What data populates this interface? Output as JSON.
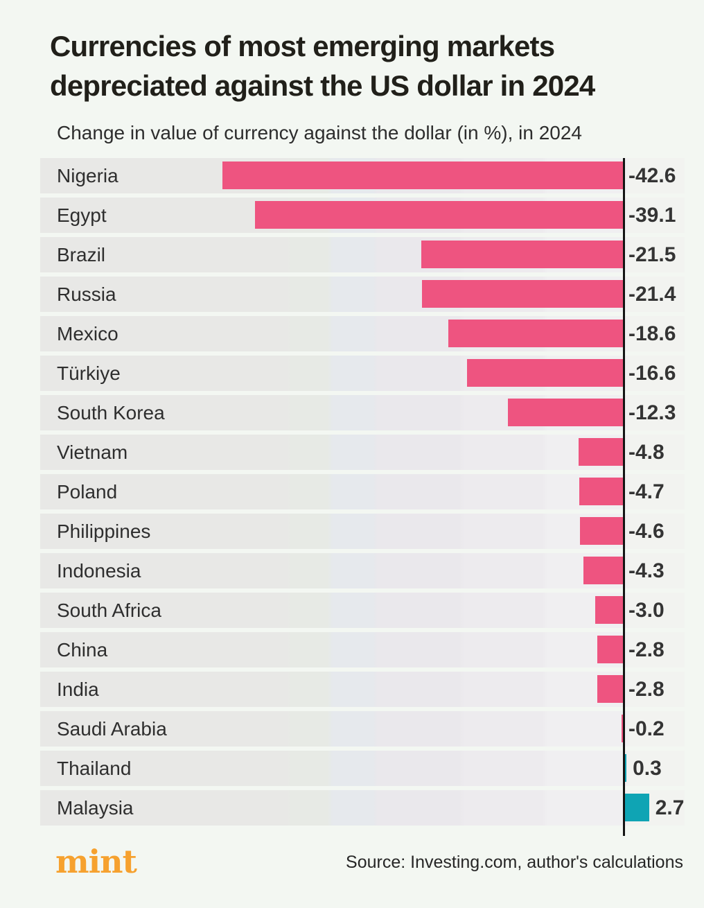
{
  "header": {
    "title_lines": {
      "line1": "Currencies of most emerging markets",
      "line2": "depreciated against the US dollar in 2024"
    },
    "subtitle": "Change in value of currency against the dollar (in %), in 2024"
  },
  "chart_data": {
    "type": "bar",
    "orientation": "horizontal",
    "title": "Currencies of most emerging markets depreciated against the US dollar in 2024",
    "subtitle": "Change in value of currency against the dollar (in %), in 2024",
    "unit": "%",
    "categories": [
      "Nigeria",
      "Egypt",
      "Brazil",
      "Russia",
      "Mexico",
      "Türkiye",
      "South Korea",
      "Vietnam",
      "Poland",
      "Philippines",
      "Indonesia",
      "South Africa",
      "China",
      "India",
      "Saudi Arabia",
      "Thailand",
      "Malaysia"
    ],
    "values": [
      -42.6,
      -39.1,
      -21.5,
      -21.4,
      -18.6,
      -16.6,
      -12.3,
      -4.8,
      -4.7,
      -4.6,
      -4.3,
      -3.0,
      -2.8,
      -2.8,
      -0.2,
      0.3,
      2.7
    ],
    "value_labels": [
      "-42.6",
      "-39.1",
      "-21.5",
      "-21.4",
      "-18.6",
      "-16.6",
      "-12.3",
      "-4.8",
      "-4.7",
      "-4.6",
      "-4.3",
      "-3.0",
      "-2.8",
      "-2.8",
      "-0.2",
      "0.3",
      "2.7"
    ],
    "baseline": 0,
    "negative_color": "#ee5480",
    "positive_color": "#0fa4b4",
    "row_background": "#e8e8e6",
    "axis_color": "#141414",
    "grid": false,
    "legend_position": "none"
  },
  "footer": {
    "brand": "mint",
    "brand_color": "#f6a12f",
    "source": "Source: Investing.com, author's calculations"
  }
}
